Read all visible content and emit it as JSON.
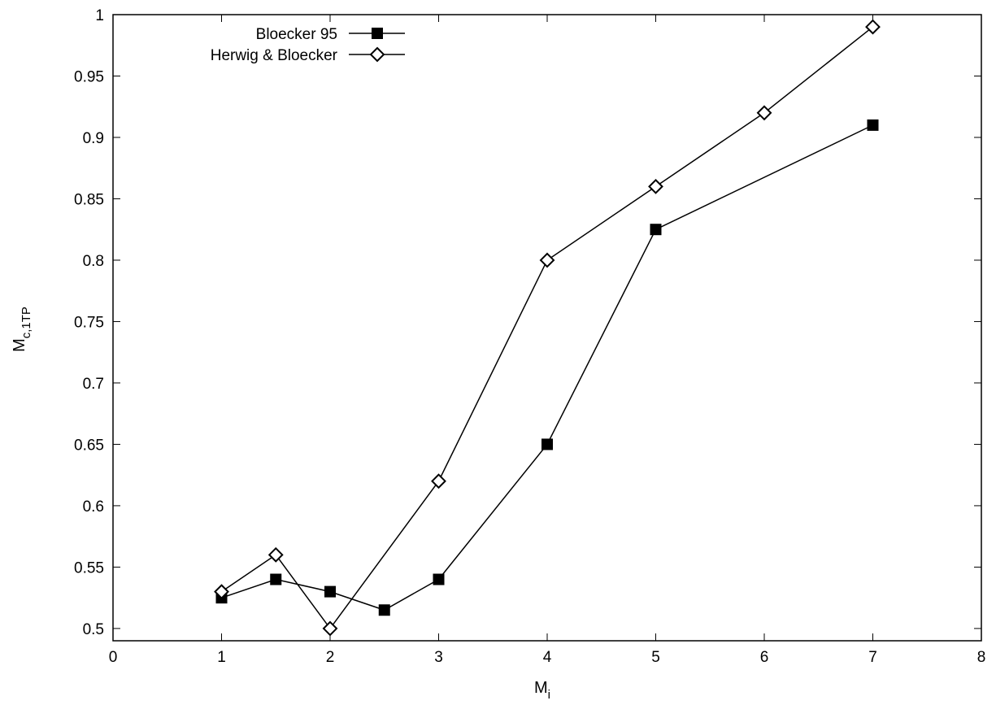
{
  "chart_data": {
    "type": "line",
    "title": "",
    "xlabel": "M",
    "xlabel_sub": "i",
    "ylabel": "M",
    "ylabel_sub": "c,1TP",
    "xlim": [
      0,
      8
    ],
    "ylim": [
      0.49,
      1.0
    ],
    "xticks": [
      0,
      1,
      2,
      3,
      4,
      5,
      6,
      7,
      8
    ],
    "yticks": [
      0.5,
      0.55,
      0.6,
      0.65,
      0.7,
      0.75,
      0.8,
      0.85,
      0.9,
      0.95,
      1
    ],
    "grid": false,
    "legend_position": "top-left",
    "series": [
      {
        "name": "Bloecker 95",
        "marker": "filled-square",
        "color": "#000000",
        "x": [
          1,
          1.5,
          2,
          2.5,
          3,
          4,
          5,
          7
        ],
        "y": [
          0.525,
          0.54,
          0.53,
          0.515,
          0.54,
          0.65,
          0.825,
          0.91
        ]
      },
      {
        "name": "Herwig & Bloecker",
        "marker": "open-diamond",
        "color": "#000000",
        "x": [
          1,
          1.5,
          2,
          3,
          4,
          5,
          6,
          7
        ],
        "y": [
          0.53,
          0.56,
          0.5,
          0.62,
          0.8,
          0.86,
          0.92,
          0.99
        ]
      }
    ]
  }
}
